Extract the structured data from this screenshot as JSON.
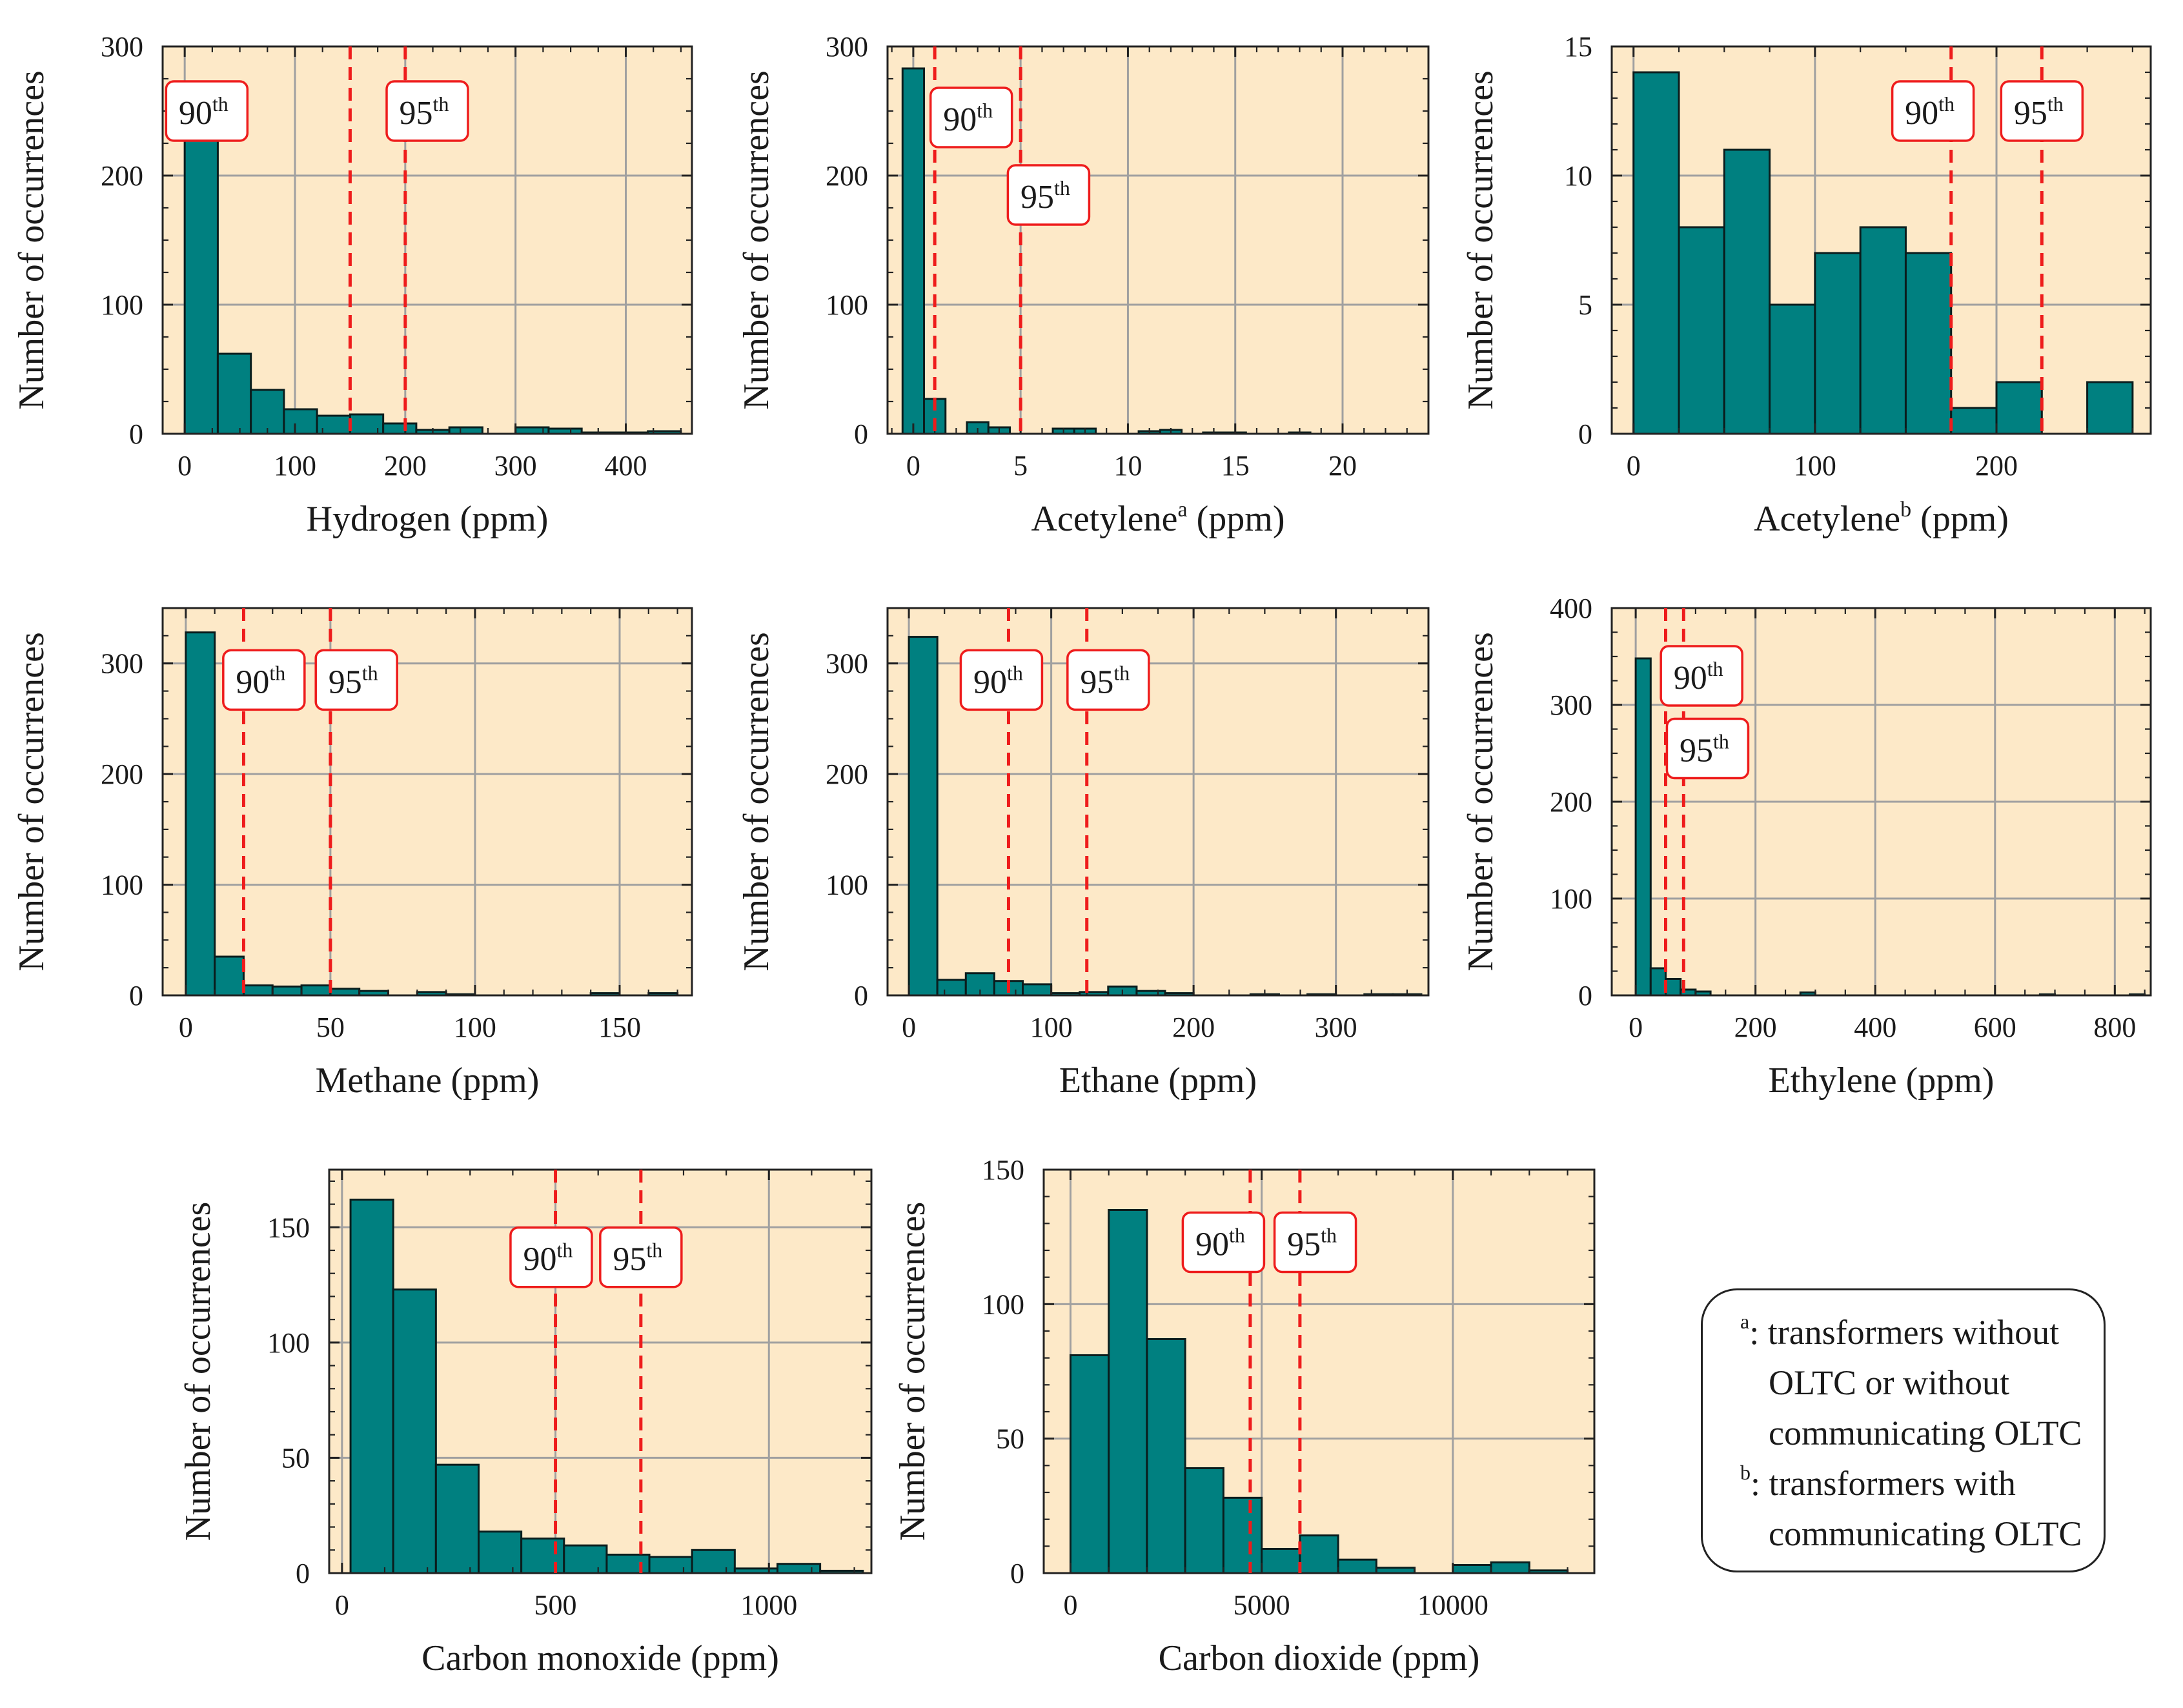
{
  "figure": {
    "ylabel": "Number of occurrences",
    "percentile_labels": {
      "p90": "90",
      "p95": "95",
      "suffix": "th"
    }
  },
  "legend": {
    "line1_sup": "a",
    "line1_text": ": transformers without",
    "line2_text": "OLTC or without",
    "line3_text": "communicating OLTC",
    "line4_sup": "b",
    "line4_text": ": transformers with",
    "line5_text": "communicating OLTC"
  },
  "colors": {
    "bar": "#008080",
    "background": "#fde9c8",
    "percentile": "#ee1c1c",
    "grid": "#a0a0a0"
  },
  "chart_data": [
    {
      "id": "hydrogen",
      "type": "bar",
      "xlabel": "Hydrogen (ppm)",
      "xlabel_sup": "",
      "xlabel_unit": "",
      "ylabel": "Number of occurrences",
      "xlim": [
        -20,
        460
      ],
      "ylim": [
        0,
        300
      ],
      "xticks": [
        0,
        100,
        200,
        300,
        400
      ],
      "yticks": [
        0,
        100,
        200,
        300
      ],
      "xtick_labels": [
        "0",
        "100",
        "200",
        "300",
        "400"
      ],
      "ytick_labels": [
        "0",
        "100",
        "200",
        "300"
      ],
      "xminor": 25,
      "yminor": 25,
      "bin_width": 30,
      "bin_start": 0,
      "values": [
        236,
        62,
        34,
        19,
        14,
        15,
        8,
        3,
        5,
        0,
        5,
        4,
        1,
        1,
        2
      ],
      "p90": 150,
      "p95": 200,
      "box90": [
        20,
        250
      ],
      "box95": [
        220,
        250
      ]
    },
    {
      "id": "acetylene_a",
      "type": "bar",
      "xlabel": "Acetylene",
      "xlabel_sup": "a",
      "xlabel_unit": " (ppm)",
      "ylabel": "Number of occurrences",
      "xlim": [
        -1.2,
        24
      ],
      "ylim": [
        0,
        300
      ],
      "xticks": [
        0,
        5,
        10,
        15,
        20
      ],
      "yticks": [
        0,
        100,
        200,
        300
      ],
      "xtick_labels": [
        "0",
        "5",
        "10",
        "15",
        "20"
      ],
      "ytick_labels": [
        "0",
        "100",
        "200",
        "300"
      ],
      "xminor": 1,
      "yminor": 25,
      "bin_width": 1,
      "bin_start": -0.5,
      "values": [
        283,
        27,
        0,
        9,
        5,
        0,
        0,
        4,
        4,
        0,
        0,
        2,
        3,
        0,
        1,
        1,
        0,
        0,
        1,
        0,
        0,
        0,
        0,
        0
      ],
      "p90": 1,
      "p95": 5,
      "box90": [
        2.7,
        245
      ],
      "box95": [
        6.3,
        185
      ]
    },
    {
      "id": "acetylene_b",
      "type": "bar",
      "xlabel": "Acetylene",
      "xlabel_sup": "b",
      "xlabel_unit": " (ppm)",
      "ylabel": "Number of occurrences",
      "xlim": [
        -12,
        285
      ],
      "ylim": [
        0,
        15
      ],
      "xticks": [
        0,
        100,
        200
      ],
      "yticks": [
        0,
        5,
        10,
        15
      ],
      "xtick_labels": [
        "0",
        "100",
        "200"
      ],
      "ytick_labels": [
        "0",
        "5",
        "10",
        "15"
      ],
      "xminor": 25,
      "yminor": 1,
      "bin_width": 25,
      "bin_start": 0,
      "values": [
        14,
        8,
        11,
        5,
        7,
        8,
        7,
        1,
        2,
        0,
        2
      ],
      "p90": 175,
      "p95": 225,
      "box90": [
        165,
        12.5
      ],
      "box95": [
        225,
        12.5
      ]
    },
    {
      "id": "methane",
      "type": "bar",
      "xlabel": "Methane (ppm)",
      "xlabel_sup": "",
      "xlabel_unit": "",
      "ylabel": "Number of occurrences",
      "xlim": [
        -8,
        175
      ],
      "ylim": [
        0,
        350
      ],
      "xticks": [
        0,
        50,
        100,
        150
      ],
      "yticks": [
        0,
        100,
        200,
        300
      ],
      "xtick_labels": [
        "0",
        "50",
        "100",
        "150"
      ],
      "ytick_labels": [
        "0",
        "100",
        "200",
        "300"
      ],
      "xminor": 10,
      "yminor": 25,
      "bin_width": 10,
      "bin_start": 0,
      "values": [
        328,
        35,
        9,
        8,
        9,
        6,
        4,
        0,
        3,
        1,
        0,
        0,
        0,
        0,
        2,
        0,
        2
      ],
      "p90": 20,
      "p95": 50,
      "box90": [
        27,
        285
      ],
      "box95": [
        59,
        285
      ]
    },
    {
      "id": "ethane",
      "type": "bar",
      "xlabel": "Ethane (ppm)",
      "xlabel_sup": "",
      "xlabel_unit": "",
      "ylabel": "Number of occurrences",
      "xlim": [
        -15,
        365
      ],
      "ylim": [
        0,
        350
      ],
      "xticks": [
        0,
        100,
        200,
        300
      ],
      "yticks": [
        0,
        100,
        200,
        300
      ],
      "xtick_labels": [
        "0",
        "100",
        "200",
        "300"
      ],
      "ytick_labels": [
        "0",
        "100",
        "200",
        "300"
      ],
      "xminor": 25,
      "yminor": 25,
      "bin_width": 20,
      "bin_start": 0,
      "values": [
        324,
        14,
        20,
        13,
        10,
        2,
        3,
        8,
        4,
        2,
        0,
        0,
        1,
        0,
        1,
        0,
        1,
        1
      ],
      "p90": 70,
      "p95": 125,
      "box90": [
        65,
        285
      ],
      "box95": [
        140,
        285
      ]
    },
    {
      "id": "ethylene",
      "type": "bar",
      "xlabel": "Ethylene (ppm)",
      "xlabel_sup": "",
      "xlabel_unit": "",
      "ylabel": "Number of occurrences",
      "xlim": [
        -40,
        860
      ],
      "ylim": [
        0,
        400
      ],
      "xticks": [
        0,
        200,
        400,
        600,
        800
      ],
      "yticks": [
        0,
        100,
        200,
        300,
        400
      ],
      "xtick_labels": [
        "0",
        "200",
        "400",
        "600",
        "800"
      ],
      "ytick_labels": [
        "0",
        "100",
        "200",
        "300",
        "400"
      ],
      "xminor": 50,
      "yminor": 25,
      "bin_width": 25,
      "bin_start": 0,
      "values": [
        348,
        28,
        17,
        6,
        4,
        0,
        0,
        0,
        0,
        0,
        0,
        3,
        0,
        0,
        0,
        0,
        0,
        0,
        0,
        0,
        0,
        0,
        0,
        0,
        0,
        0,
        0,
        1,
        0,
        0,
        0,
        0,
        0,
        1
      ],
      "p90": 50,
      "p95": 80,
      "box90": [
        110,
        330
      ],
      "box95": [
        120,
        255
      ]
    },
    {
      "id": "carbon_monoxide",
      "type": "bar",
      "xlabel": "Carbon monoxide (ppm)",
      "xlabel_sup": "",
      "xlabel_unit": "",
      "ylabel": "Number of occurrences",
      "xlim": [
        -30,
        1240
      ],
      "ylim": [
        0,
        175
      ],
      "xticks": [
        0,
        500,
        1000
      ],
      "yticks": [
        0,
        50,
        100,
        150
      ],
      "xtick_labels": [
        "0",
        "500",
        "1000"
      ],
      "ytick_labels": [
        "0",
        "50",
        "100",
        "150"
      ],
      "xminor": 100,
      "yminor": 10,
      "bin_width": 100,
      "bin_start": 20,
      "values": [
        162,
        123,
        47,
        18,
        15,
        12,
        8,
        7,
        10,
        2,
        4,
        1
      ],
      "p90": 500,
      "p95": 700,
      "box90": [
        490,
        137
      ],
      "box95": [
        700,
        137
      ]
    },
    {
      "id": "carbon_dioxide",
      "type": "bar",
      "xlabel": "Carbon dioxide (ppm)",
      "xlabel_sup": "",
      "xlabel_unit": "",
      "ylabel": "Number of occurrences",
      "xlim": [
        -700,
        13700
      ],
      "ylim": [
        0,
        150
      ],
      "xticks": [
        0,
        5000,
        10000
      ],
      "yticks": [
        0,
        50,
        100,
        150
      ],
      "xtick_labels": [
        "0",
        "5000",
        "10000"
      ],
      "ytick_labels": [
        "0",
        "50",
        "100",
        "150"
      ],
      "xminor": 1000,
      "yminor": 10,
      "bin_width": 1000,
      "bin_start": 0,
      "values": [
        81,
        135,
        87,
        39,
        28,
        9,
        14,
        5,
        2,
        0,
        3,
        4,
        1
      ],
      "p90": 4700,
      "p95": 6000,
      "box90": [
        4000,
        123
      ],
      "box95": [
        6400,
        123
      ]
    }
  ]
}
